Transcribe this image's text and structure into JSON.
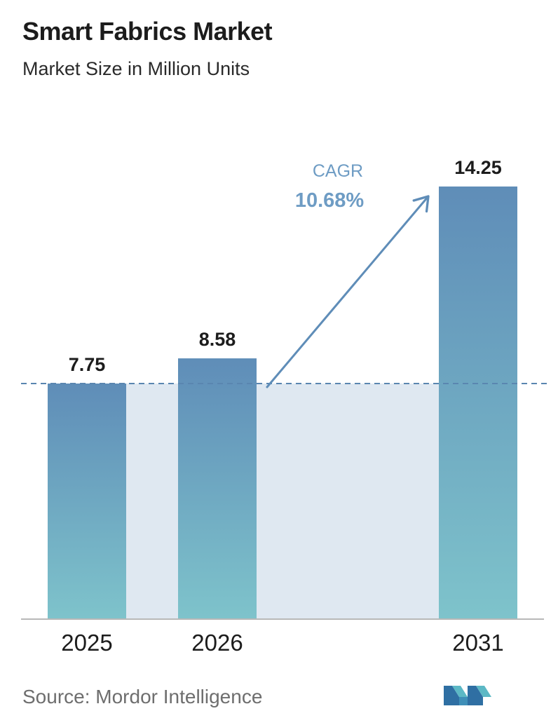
{
  "header": {
    "title": "Smart Fabrics Market",
    "subtitle": "Market Size in Million Units"
  },
  "chart_data": {
    "type": "bar",
    "categories": [
      "2025",
      "2026",
      "2031"
    ],
    "values": [
      7.75,
      8.58,
      14.25
    ],
    "data_labels": [
      "7.75",
      "8.58",
      "14.25"
    ],
    "ylim": [
      0,
      14.25
    ],
    "grid": false,
    "reference_line_value": 7.75,
    "annotation": {
      "label": "CAGR",
      "value": "10.68%"
    },
    "colors": {
      "bar_top": "#5f8db8",
      "bar_bottom": "#7ec3cb",
      "band_fill": "#dfe8f1",
      "reference_line": "#5a86b0",
      "annotation_text": "#6e9cc4",
      "arrow": "#5f8db8",
      "baseline": "#b8b8b8"
    }
  },
  "footer": {
    "source": "Source:  Mordor Intelligence",
    "logo_icon": "mordor-intelligence-logo-icon"
  }
}
